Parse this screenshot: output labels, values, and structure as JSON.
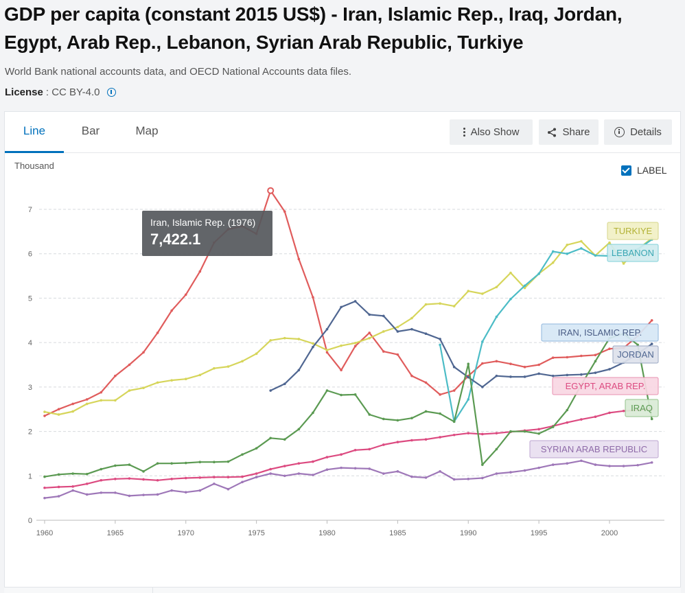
{
  "title": "GDP per capita (constant 2015 US$) - Iran, Islamic Rep., Iraq, Jordan, Egypt, Arab Rep., Lebanon, Syrian Arab Republic, Turkiye",
  "source": "World Bank national accounts data, and OECD National Accounts data files.",
  "license": {
    "label": "License",
    "value": ": CC BY-4.0"
  },
  "tabs": [
    {
      "label": "Line",
      "active": true
    },
    {
      "label": "Bar",
      "active": false
    },
    {
      "label": "Map",
      "active": false
    }
  ],
  "toolbar": {
    "also_show": "Also Show",
    "share": "Share",
    "details": "Details"
  },
  "label_toggle": {
    "text": "LABEL",
    "checked": true
  },
  "tooltip": {
    "label": "Iran, Islamic Rep. (1976)",
    "value": "7,422.1"
  },
  "chart_data": {
    "type": "line",
    "unit_label": "Thousand",
    "xlim": [
      1960,
      2003
    ],
    "ylim": [
      0,
      7.5
    ],
    "x_ticks": [
      1960,
      1965,
      1970,
      1975,
      1980,
      1985,
      1990,
      1995,
      2000
    ],
    "y_ticks": [
      0,
      1,
      2,
      3,
      4,
      5,
      6,
      7
    ],
    "grid": true,
    "series": [
      {
        "name": "IRAN, ISLAMIC REP.",
        "color": "#e05c5c",
        "label_color": "#4a5d85",
        "label_bg": "#d6e7f5",
        "label_border": "#8fb6dc",
        "x": [
          1960,
          1961,
          1962,
          1963,
          1964,
          1965,
          1966,
          1967,
          1968,
          1969,
          1970,
          1971,
          1972,
          1973,
          1974,
          1975,
          1976,
          1977,
          1978,
          1979,
          1980,
          1981,
          1982,
          1983,
          1984,
          1985,
          1986,
          1987,
          1988,
          1989,
          1990,
          1991,
          1992,
          1993,
          1994,
          1995,
          1996,
          1997,
          1998,
          1999,
          2000,
          2001,
          2002,
          2003
        ],
        "y": [
          2.35,
          2.5,
          2.62,
          2.72,
          2.88,
          3.25,
          3.5,
          3.78,
          4.22,
          4.72,
          5.08,
          5.6,
          6.25,
          6.55,
          6.62,
          6.45,
          7.42,
          6.95,
          5.88,
          5.02,
          3.78,
          3.38,
          3.92,
          4.22,
          3.8,
          3.73,
          3.25,
          3.1,
          2.83,
          2.92,
          3.25,
          3.53,
          3.58,
          3.52,
          3.45,
          3.5,
          3.66,
          3.67,
          3.7,
          3.72,
          3.86,
          3.88,
          4.15,
          4.5
        ]
      },
      {
        "name": "TURKIYE",
        "color": "#d6d55a",
        "label_color": "#b3b237",
        "label_bg": "#f1f0c4",
        "label_border": "#d6d58a",
        "x": [
          1960,
          1961,
          1962,
          1963,
          1964,
          1965,
          1966,
          1967,
          1968,
          1969,
          1970,
          1971,
          1972,
          1973,
          1974,
          1975,
          1976,
          1977,
          1978,
          1979,
          1980,
          1981,
          1982,
          1983,
          1984,
          1985,
          1986,
          1987,
          1988,
          1989,
          1990,
          1991,
          1992,
          1993,
          1994,
          1995,
          1996,
          1997,
          1998,
          1999,
          2000,
          2001,
          2002,
          2003
        ],
        "y": [
          2.44,
          2.38,
          2.45,
          2.62,
          2.7,
          2.7,
          2.92,
          2.98,
          3.1,
          3.15,
          3.18,
          3.27,
          3.42,
          3.46,
          3.58,
          3.75,
          4.05,
          4.1,
          4.08,
          3.98,
          3.83,
          3.93,
          3.99,
          4.1,
          4.25,
          4.35,
          4.55,
          4.86,
          4.88,
          4.82,
          5.16,
          5.1,
          5.25,
          5.57,
          5.23,
          5.55,
          5.8,
          6.2,
          6.28,
          5.96,
          6.25,
          5.78,
          6.1,
          6.35
        ]
      },
      {
        "name": "LEBANON",
        "color": "#4cbcc6",
        "label_color": "#3aa7b3",
        "label_bg": "#cfecef",
        "label_border": "#7fd0d8",
        "x": [
          1988,
          1989,
          1990,
          1991,
          1992,
          1993,
          1994,
          1995,
          1996,
          1997,
          1998,
          1999,
          2000,
          2001,
          2002,
          2003
        ],
        "y": [
          3.95,
          2.22,
          2.72,
          4.02,
          4.58,
          4.98,
          5.28,
          5.55,
          6.05,
          6.0,
          6.12,
          5.96,
          5.95,
          6.05,
          6.1,
          6.32
        ]
      },
      {
        "name": "JORDAN",
        "color": "#4f6691",
        "label_color": "#4f6691",
        "label_bg": "#dde2ec",
        "label_border": "#9aa7c2",
        "x": [
          1976,
          1977,
          1978,
          1979,
          1980,
          1981,
          1982,
          1983,
          1984,
          1985,
          1986,
          1987,
          1988,
          1989,
          1990,
          1991,
          1992,
          1993,
          1994,
          1995,
          1996,
          1997,
          1998,
          1999,
          2000,
          2001,
          2002,
          2003
        ],
        "y": [
          2.92,
          3.07,
          3.38,
          3.9,
          4.3,
          4.8,
          4.93,
          4.63,
          4.6,
          4.25,
          4.3,
          4.2,
          4.08,
          3.45,
          3.22,
          3.0,
          3.25,
          3.23,
          3.23,
          3.3,
          3.25,
          3.27,
          3.28,
          3.32,
          3.4,
          3.55,
          3.75,
          3.97
        ]
      },
      {
        "name": "EGYPT, ARAB REP.",
        "color": "#dc4a80",
        "label_color": "#dc4a80",
        "label_bg": "#f8d7e3",
        "label_border": "#e890b1",
        "x": [
          1960,
          1961,
          1962,
          1963,
          1964,
          1965,
          1966,
          1967,
          1968,
          1969,
          1970,
          1971,
          1972,
          1973,
          1974,
          1975,
          1976,
          1977,
          1978,
          1979,
          1980,
          1981,
          1982,
          1983,
          1984,
          1985,
          1986,
          1987,
          1988,
          1989,
          1990,
          1991,
          1992,
          1993,
          1994,
          1995,
          1996,
          1997,
          1998,
          1999,
          2000,
          2001,
          2002,
          2003
        ],
        "y": [
          0.73,
          0.75,
          0.76,
          0.82,
          0.9,
          0.93,
          0.94,
          0.92,
          0.9,
          0.93,
          0.95,
          0.96,
          0.97,
          0.97,
          0.98,
          1.05,
          1.15,
          1.22,
          1.28,
          1.32,
          1.42,
          1.48,
          1.58,
          1.6,
          1.7,
          1.76,
          1.8,
          1.82,
          1.87,
          1.92,
          1.96,
          1.94,
          1.96,
          1.99,
          2.02,
          2.05,
          2.12,
          2.2,
          2.27,
          2.33,
          2.42,
          2.46,
          2.48,
          2.5
        ]
      },
      {
        "name": "IRAQ",
        "color": "#5b9a52",
        "label_color": "#5b9a52",
        "label_bg": "#d9ead6",
        "label_border": "#93c28b",
        "x": [
          1960,
          1961,
          1962,
          1963,
          1964,
          1965,
          1966,
          1967,
          1968,
          1969,
          1970,
          1971,
          1972,
          1973,
          1974,
          1975,
          1976,
          1977,
          1978,
          1979,
          1980,
          1981,
          1982,
          1983,
          1984,
          1985,
          1986,
          1987,
          1988,
          1989,
          1990,
          1991,
          1992,
          1993,
          1994,
          1995,
          1996,
          1997,
          1998,
          1999,
          2000,
          2001,
          2002,
          2003
        ],
        "y": [
          0.98,
          1.03,
          1.05,
          1.04,
          1.15,
          1.23,
          1.25,
          1.1,
          1.28,
          1.28,
          1.29,
          1.31,
          1.31,
          1.32,
          1.48,
          1.62,
          1.85,
          1.82,
          2.05,
          2.42,
          2.92,
          2.82,
          2.83,
          2.38,
          2.28,
          2.25,
          2.3,
          2.45,
          2.4,
          2.22,
          3.52,
          1.25,
          1.6,
          2.0,
          2.0,
          1.95,
          2.1,
          2.48,
          3.05,
          3.58,
          4.1,
          4.2,
          3.95,
          2.28
        ]
      },
      {
        "name": "SYRIAN ARAB REPUBLIC",
        "color": "#9e77b8",
        "label_color": "#8e6aa8",
        "label_bg": "#e8def0",
        "label_border": "#bca5d0",
        "x": [
          1960,
          1961,
          1962,
          1963,
          1964,
          1965,
          1966,
          1967,
          1968,
          1969,
          1970,
          1971,
          1972,
          1973,
          1974,
          1975,
          1976,
          1977,
          1978,
          1979,
          1980,
          1981,
          1982,
          1983,
          1984,
          1985,
          1986,
          1987,
          1988,
          1989,
          1990,
          1991,
          1992,
          1993,
          1994,
          1995,
          1996,
          1997,
          1998,
          1999,
          2000,
          2001,
          2002,
          2003
        ],
        "y": [
          0.5,
          0.54,
          0.67,
          0.58,
          0.62,
          0.62,
          0.55,
          0.57,
          0.58,
          0.67,
          0.63,
          0.67,
          0.82,
          0.7,
          0.86,
          0.97,
          1.05,
          1.0,
          1.05,
          1.02,
          1.14,
          1.18,
          1.17,
          1.16,
          1.05,
          1.1,
          0.98,
          0.96,
          1.1,
          0.92,
          0.93,
          0.95,
          1.05,
          1.08,
          1.12,
          1.18,
          1.25,
          1.28,
          1.34,
          1.25,
          1.22,
          1.22,
          1.24,
          1.3
        ]
      }
    ],
    "highlight": {
      "series": "IRAN, ISLAMIC REP.",
      "x": 1976,
      "y": 7.422
    }
  }
}
